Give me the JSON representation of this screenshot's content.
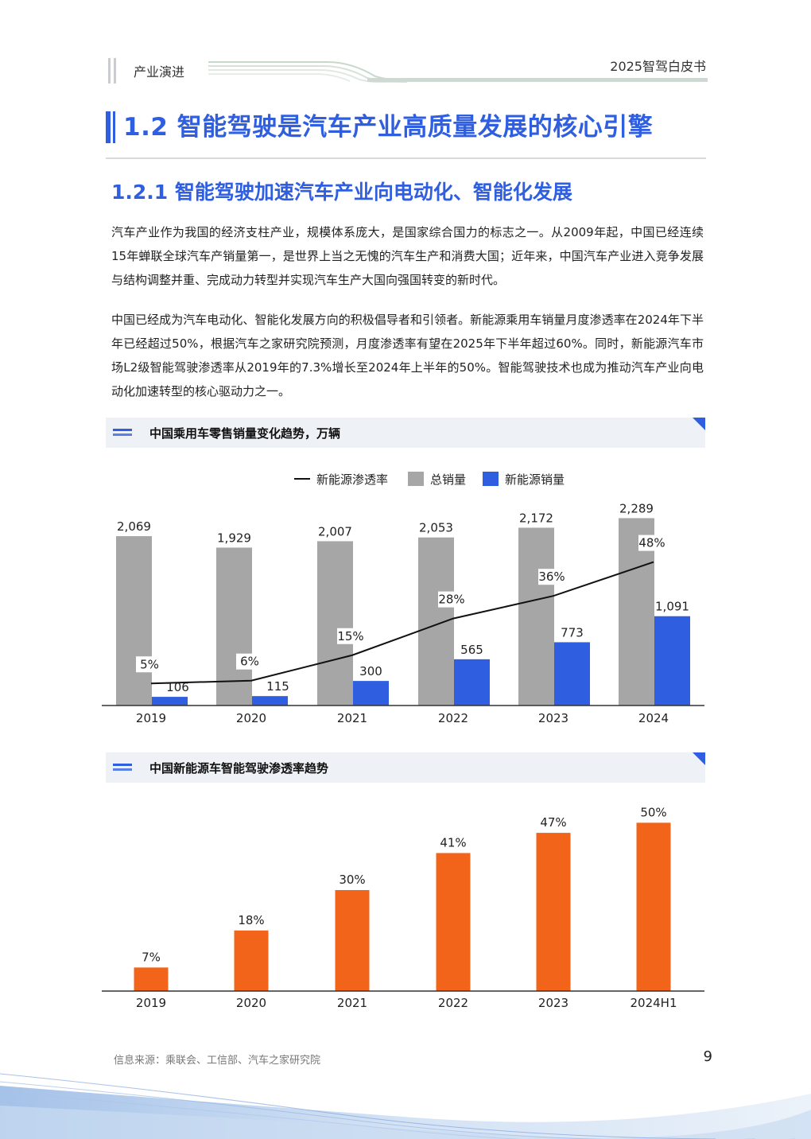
{
  "header": {
    "section": "产业演进",
    "doc_title": "2025智驾白皮书"
  },
  "h1": "1.2 智能驾驶是汽车产业高质量发展的核心引擎",
  "h2": "1.2.1 智能驾驶加速汽车产业向电动化、智能化发展",
  "paragraphs": [
    "汽车产业作为我国的经济支柱产业，规模体系庞大，是国家综合国力的标志之一。从2009年起，中国已经连续15年蝉联全球汽车产销量第一，是世界上当之无愧的汽车生产和消费大国；近年来，中国汽车产业进入竞争发展与结构调整并重、完成动力转型并实现汽车生产大国向强国转变的新时代。",
    "中国已经成为汽车电动化、智能化发展方向的积极倡导者和引领者。新能源乘用车销量月度渗透率在2024年下半年已经超过50%，根据汽车之家研究院预测，月度渗透率有望在2025年下半年超过60%。同时，新能源汽车市场L2级智能驾驶渗透率从2019年的7.3%增长至2024年上半年的50%。智能驾驶技术也成为推动汽车产业向电动化加速转型的核心驱动力之一。"
  ],
  "chart_data": [
    {
      "type": "bar",
      "title": "中国乘用车零售销量变化趋势，万辆",
      "categories": [
        "2019",
        "2020",
        "2021",
        "2022",
        "2023",
        "2024"
      ],
      "series": [
        {
          "name": "总销量",
          "type": "bar",
          "color": "#a6a6a6",
          "values": [
            2069,
            1929,
            2007,
            2053,
            2172,
            2289
          ],
          "labels": [
            "2,069",
            "1,929",
            "2,007",
            "2,053",
            "2,172",
            "2,289"
          ]
        },
        {
          "name": "新能源销量",
          "type": "bar",
          "color": "#2f5fe0",
          "values": [
            106,
            115,
            300,
            565,
            773,
            1091
          ],
          "labels": [
            "106",
            "115",
            "300",
            "565",
            "773",
            "1,091"
          ]
        },
        {
          "name": "新能源渗透率",
          "type": "line",
          "color": "#111111",
          "values": [
            5,
            6,
            15,
            28,
            36,
            48
          ],
          "labels": [
            "5%",
            "6%",
            "15%",
            "28%",
            "36%",
            "48%"
          ]
        }
      ],
      "legend": [
        "新能源渗透率",
        "总销量",
        "新能源销量"
      ],
      "legend_position": "top",
      "ylim": [
        0,
        2400
      ],
      "grid": false
    },
    {
      "type": "bar",
      "title": "中国新能源车智能驾驶渗透率趋势",
      "categories": [
        "2019",
        "2020",
        "2021",
        "2022",
        "2023",
        "2024H1"
      ],
      "series": [
        {
          "type": "bar",
          "color": "#f26419",
          "values": [
            7,
            18,
            30,
            41,
            47,
            50
          ],
          "labels": [
            "7%",
            "18%",
            "30%",
            "41%",
            "47%",
            "50%"
          ]
        }
      ],
      "ylim": [
        0,
        56
      ],
      "grid": false
    }
  ],
  "footer": {
    "source": "信息来源：乘联会、工信部、汽车之家研究院",
    "page_number": "9"
  },
  "colors": {
    "accent": "#2f5fe0",
    "gray_bar": "#a6a6a6",
    "orange_bar": "#f26419"
  }
}
